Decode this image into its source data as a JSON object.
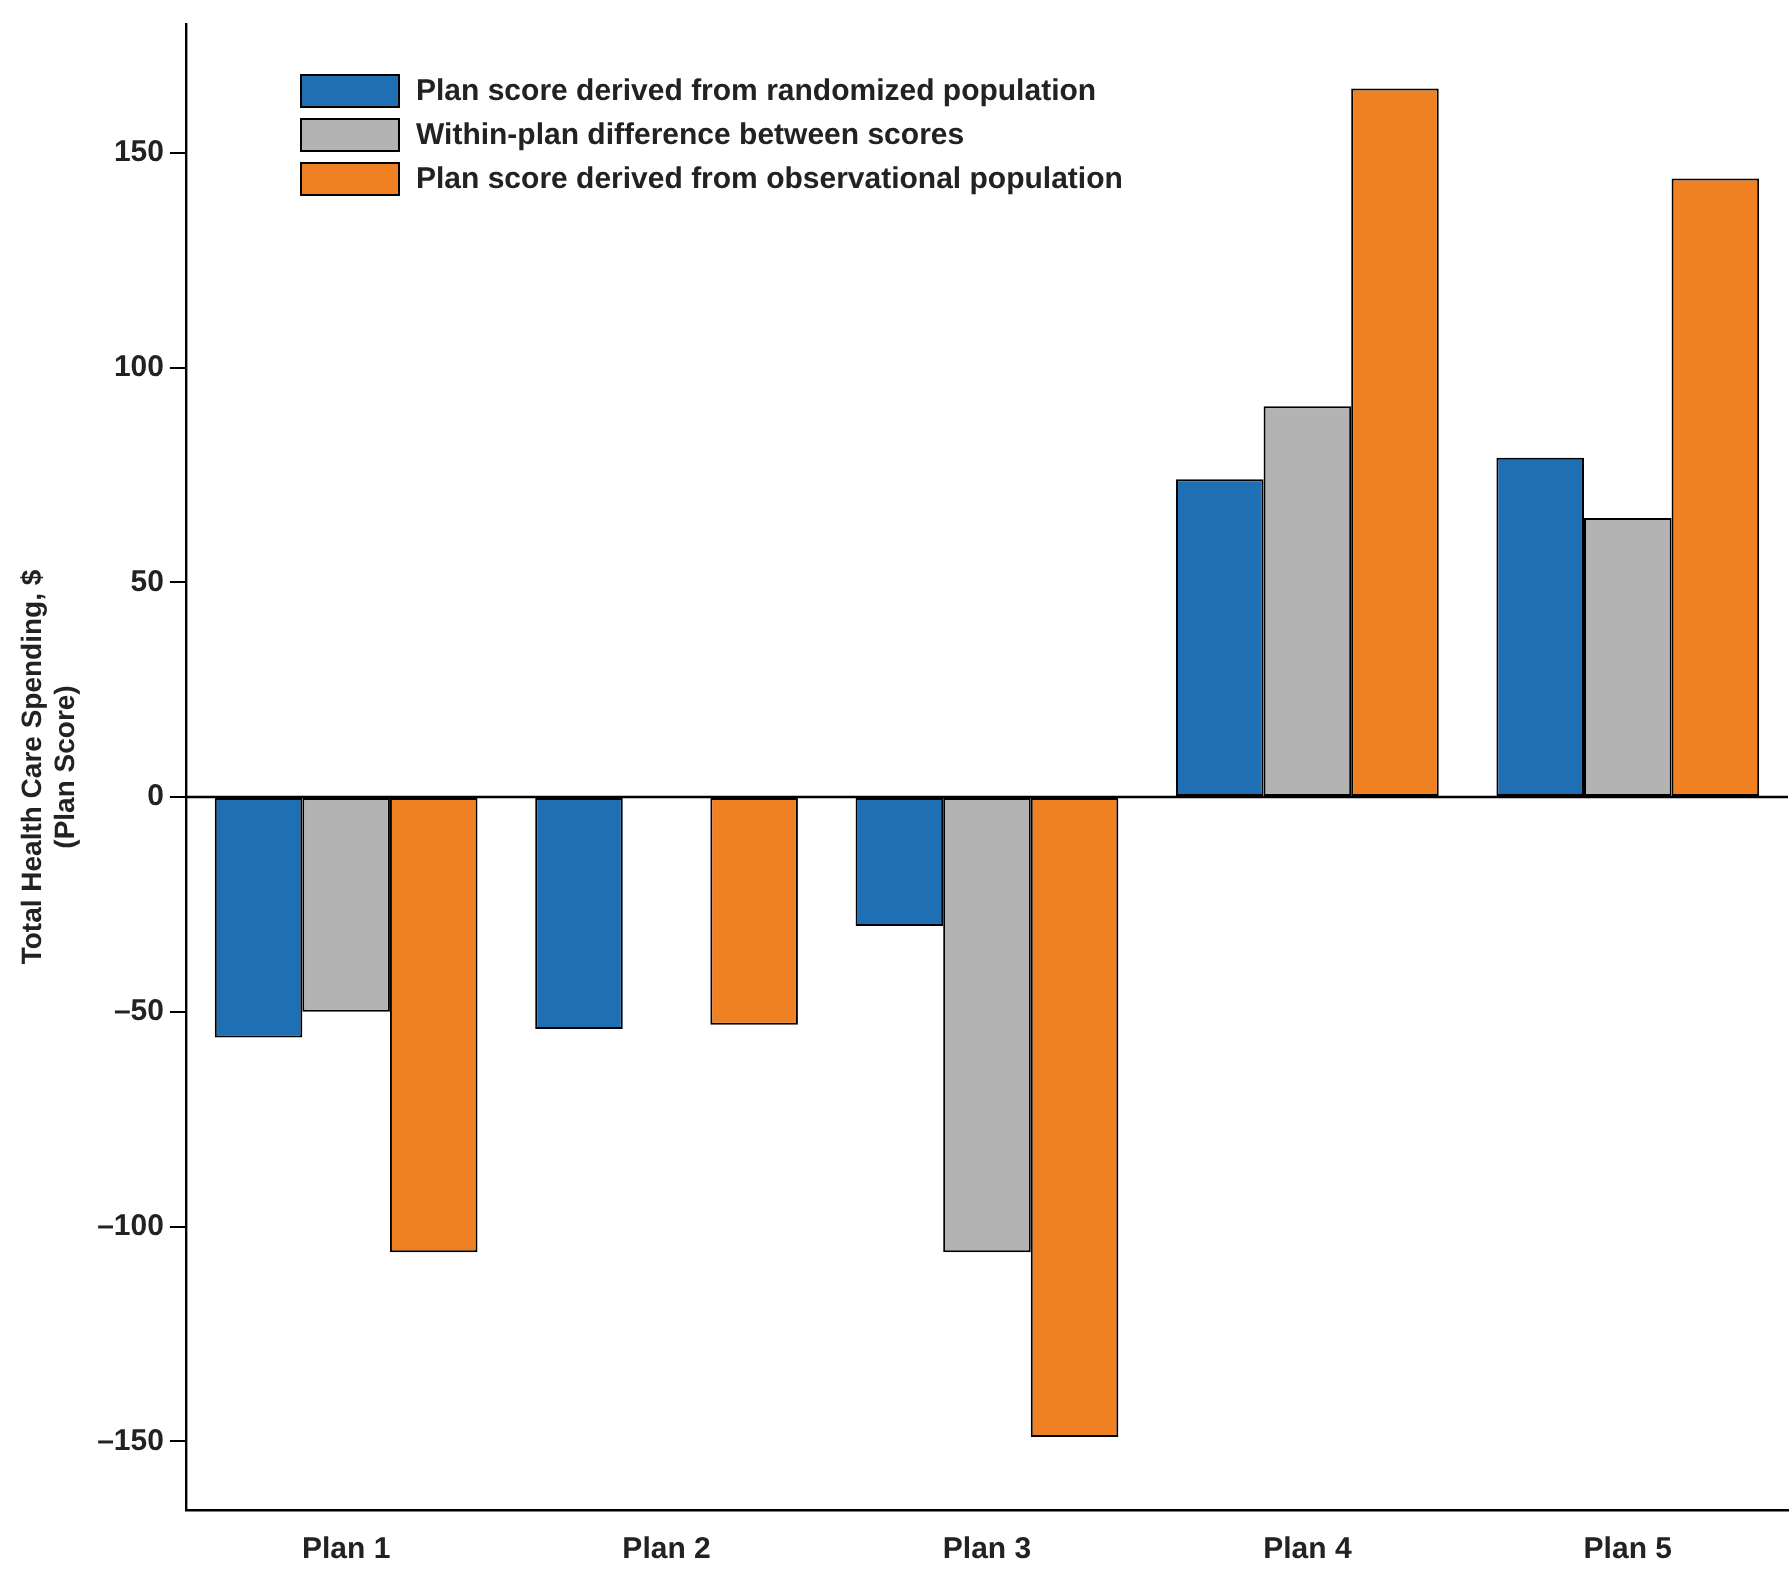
{
  "chart_data": {
    "type": "bar",
    "ylabel": "Total Health Care Spending, $\n(Plan Score)",
    "categories": [
      "Plan 1",
      "Plan 2",
      "Plan 3",
      "Plan 4",
      "Plan 5"
    ],
    "series": [
      {
        "name": "Plan score derived from randomized population",
        "color": "#1f6fb4",
        "values": [
          -56,
          -54,
          -30,
          74,
          79
        ]
      },
      {
        "name": "Within-plan difference between scores",
        "color": "#b3b3b3",
        "values": [
          -50,
          null,
          -106,
          91,
          65
        ]
      },
      {
        "name": "Plan score derived from observational population",
        "color": "#f08122",
        "values": [
          -106,
          -53,
          -149,
          165,
          144
        ]
      }
    ],
    "ylim": [
      -166,
      180
    ],
    "yticks": [
      {
        "value": -150,
        "label": "–150"
      },
      {
        "value": -100,
        "label": "–100"
      },
      {
        "value": -50,
        "label": "–50"
      },
      0,
      50,
      100,
      150
    ],
    "grid": false,
    "legend": "top left",
    "ref_lines": [
      {
        "axis": "y",
        "value": 0,
        "color": "#000000"
      }
    ]
  }
}
